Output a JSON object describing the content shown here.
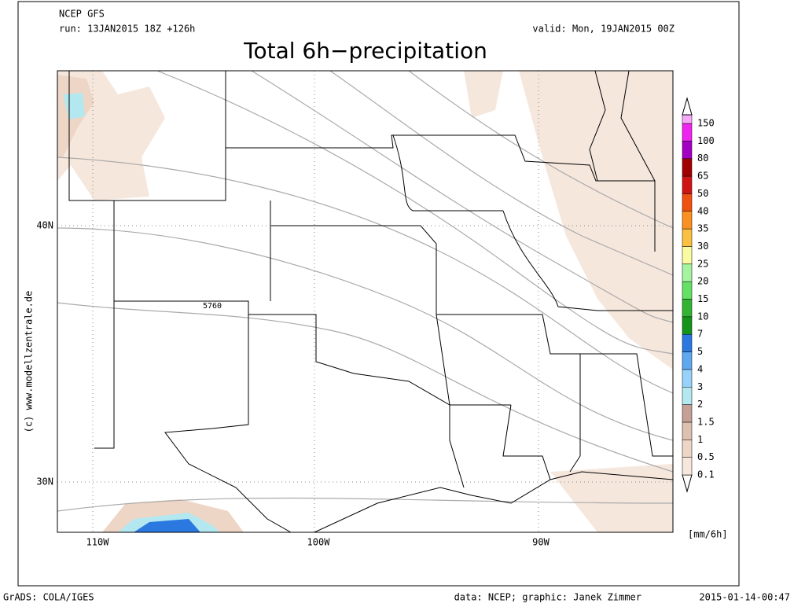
{
  "header": {
    "model": "NCEP GFS",
    "run": "run: 13JAN2015 18Z +126h",
    "valid": "valid: Mon, 19JAN2015 00Z",
    "title": "Total 6h−precipitation"
  },
  "map": {
    "lon_labels": [
      "110W",
      "100W",
      "90W"
    ],
    "lat_labels": [
      "40N",
      "30N"
    ],
    "contour_label": "5760",
    "copyright": "(c) www.modellzentrale.de"
  },
  "legend": {
    "unit": "[mm/6h]",
    "levels": [
      {
        "value": 0.1,
        "color": "#f6e7dd"
      },
      {
        "value": 0.5,
        "color": "#eed6c6"
      },
      {
        "value": 1,
        "color": "#dcc0b0"
      },
      {
        "value": 1.5,
        "color": "#c4a096"
      },
      {
        "value": 2,
        "color": "#b4e8f0"
      },
      {
        "value": 3,
        "color": "#96d2fa"
      },
      {
        "value": 4,
        "color": "#5ea8f0"
      },
      {
        "value": 5,
        "color": "#2a78e0"
      },
      {
        "value": 7,
        "color": "#14941a"
      },
      {
        "value": 10,
        "color": "#32b432"
      },
      {
        "value": 15,
        "color": "#64e064"
      },
      {
        "value": 20,
        "color": "#a4f4a0"
      },
      {
        "value": 25,
        "color": "#fafaa0"
      },
      {
        "value": 30,
        "color": "#fac040"
      },
      {
        "value": 35,
        "color": "#fa9020"
      },
      {
        "value": 40,
        "color": "#f05010"
      },
      {
        "value": 50,
        "color": "#d01414"
      },
      {
        "value": 65,
        "color": "#a00000"
      },
      {
        "value": 80,
        "color": "#a400c4"
      },
      {
        "value": 100,
        "color": "#f024f0"
      },
      {
        "value": 150,
        "color": "#f8a8f8"
      }
    ]
  },
  "footer": {
    "left": "GrADS: COLA/IGES",
    "center": "data: NCEP; graphic: Janek Zimmer",
    "right": "2015-01-14-00:47"
  }
}
